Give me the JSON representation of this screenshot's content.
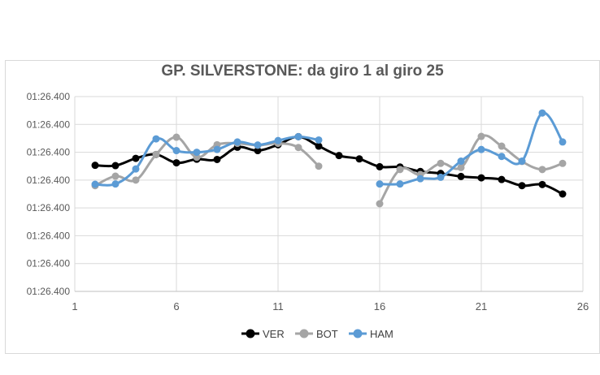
{
  "chart_data": {
    "type": "line",
    "title": "GP. SILVERSTONE: da giro 1 al giro 25",
    "xlabel": "",
    "ylabel": "",
    "xlim": [
      1,
      26
    ],
    "x_ticks": [
      "1",
      "6",
      "11",
      "16",
      "21",
      "26"
    ],
    "y_tick_labels": [
      "01:26.400",
      "01:26.400",
      "01:26.400",
      "01:26.400",
      "01:26.400",
      "01:26.400",
      "01:26.400",
      "01:26.400"
    ],
    "ylim": [
      0,
      7
    ],
    "grid": true,
    "legend_position": "bottom",
    "series": [
      {
        "name": "VER",
        "color": "#000000",
        "x": [
          2,
          3,
          4,
          5,
          6,
          7,
          8,
          9,
          10,
          11,
          12,
          13,
          14,
          15,
          16,
          17,
          18,
          19,
          20,
          21,
          22,
          23,
          24,
          25
        ],
        "y": [
          4.53,
          4.52,
          4.78,
          4.92,
          4.62,
          4.75,
          4.74,
          5.18,
          5.06,
          5.27,
          5.56,
          5.22,
          4.88,
          4.76,
          4.48,
          4.47,
          4.31,
          4.24,
          4.13,
          4.08,
          4.02,
          3.8,
          3.84,
          3.5
        ]
      },
      {
        "name": "BOT",
        "color": "#a5a5a5",
        "x": [
          2,
          3,
          4,
          5,
          6,
          7,
          8,
          9,
          10,
          11,
          12,
          13,
          null,
          16,
          17,
          18,
          19,
          20,
          21,
          22,
          23,
          24,
          25
        ],
        "y": [
          3.8,
          4.14,
          4.0,
          4.92,
          5.54,
          4.82,
          5.27,
          5.32,
          5.25,
          5.32,
          5.17,
          4.5,
          null,
          3.15,
          4.38,
          4.2,
          4.6,
          4.45,
          5.57,
          5.22,
          4.67,
          4.38,
          4.6
        ]
      },
      {
        "name": "HAM",
        "color": "#5b9bd5",
        "x": [
          2,
          3,
          4,
          5,
          6,
          7,
          8,
          9,
          10,
          11,
          12,
          13,
          null,
          16,
          17,
          18,
          19,
          20,
          21,
          22,
          23,
          24,
          25
        ],
        "y": [
          3.85,
          3.86,
          4.4,
          5.48,
          5.06,
          5.0,
          5.1,
          5.37,
          5.26,
          5.42,
          5.56,
          5.44,
          null,
          3.86,
          3.86,
          4.05,
          4.1,
          4.68,
          5.1,
          4.85,
          4.68,
          6.41,
          5.37
        ]
      }
    ]
  }
}
